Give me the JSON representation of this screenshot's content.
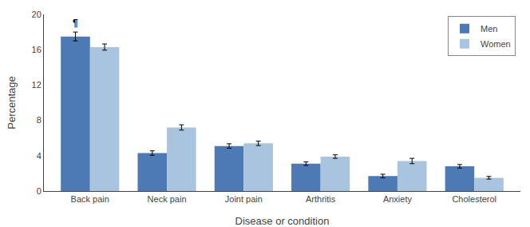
{
  "chart_data": {
    "type": "bar",
    "categories": [
      "Back pain",
      "Neck pain",
      "Joint pain",
      "Arthritis",
      "Anxiety",
      "Cholesterol"
    ],
    "series": [
      {
        "name": "Men",
        "color": "#4d7ab5",
        "values": [
          17.5,
          4.3,
          5.1,
          3.1,
          1.7,
          2.8
        ],
        "errors": [
          0.5,
          0.25,
          0.25,
          0.2,
          0.2,
          0.2
        ]
      },
      {
        "name": "Women",
        "color": "#a8c4de",
        "values": [
          16.3,
          7.2,
          5.4,
          3.9,
          3.4,
          1.5
        ],
        "errors": [
          0.35,
          0.3,
          0.25,
          0.2,
          0.3,
          0.15
        ]
      }
    ],
    "xlabel": "Disease or condition",
    "ylabel": "Percentage",
    "ylim": [
      0,
      20
    ],
    "yticks": [
      0,
      4,
      8,
      12,
      16,
      20
    ],
    "grid": false,
    "legend": "upper right",
    "annotations": [
      {
        "text": "¶",
        "category": "Back pain",
        "series": "Men"
      }
    ]
  }
}
